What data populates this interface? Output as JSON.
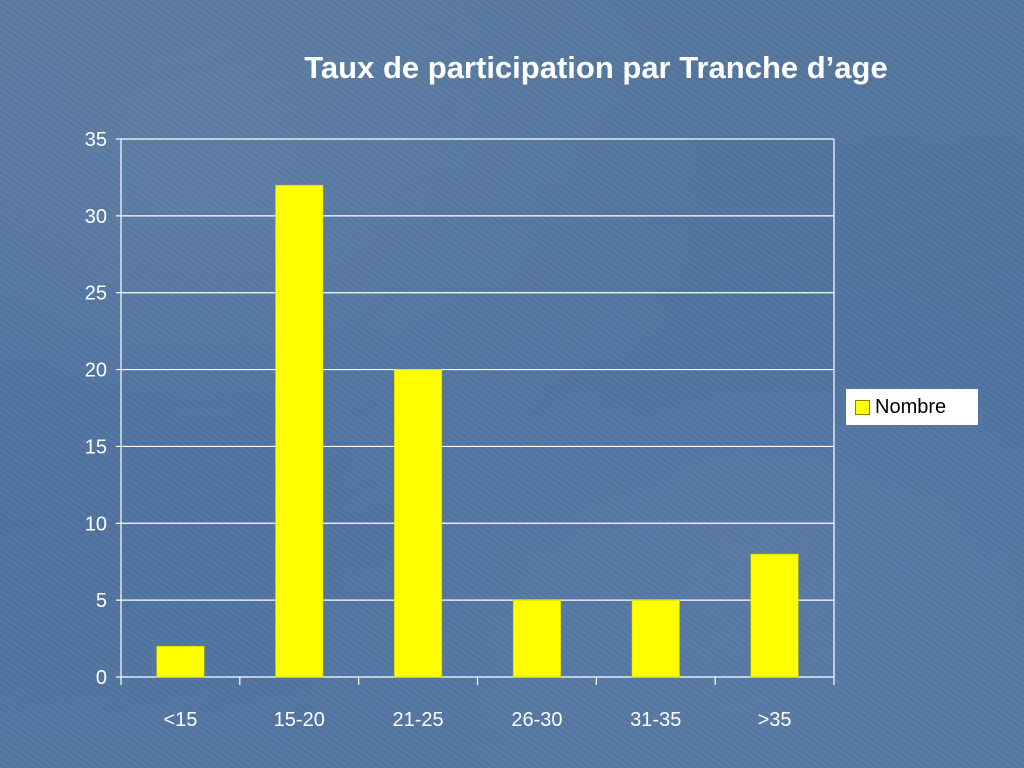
{
  "colors": {
    "background": "#4f73a0",
    "bar": "#ffff00",
    "gridline": "#ffffff",
    "text": "#ffffff"
  },
  "chart_data": {
    "type": "bar",
    "title": "Taux de participation par Tranche d’age",
    "xlabel": "",
    "ylabel": "",
    "categories": [
      "<15",
      "15-20",
      "21-25",
      "26-30",
      "31-35",
      ">35"
    ],
    "series": [
      {
        "name": "Nombre",
        "values": [
          2,
          32,
          20,
          5,
          5,
          8
        ]
      }
    ],
    "ylim": [
      0,
      35
    ],
    "yticks": [
      0,
      5,
      10,
      15,
      20,
      25,
      30,
      35
    ],
    "grid": true,
    "legend_position": "right"
  }
}
